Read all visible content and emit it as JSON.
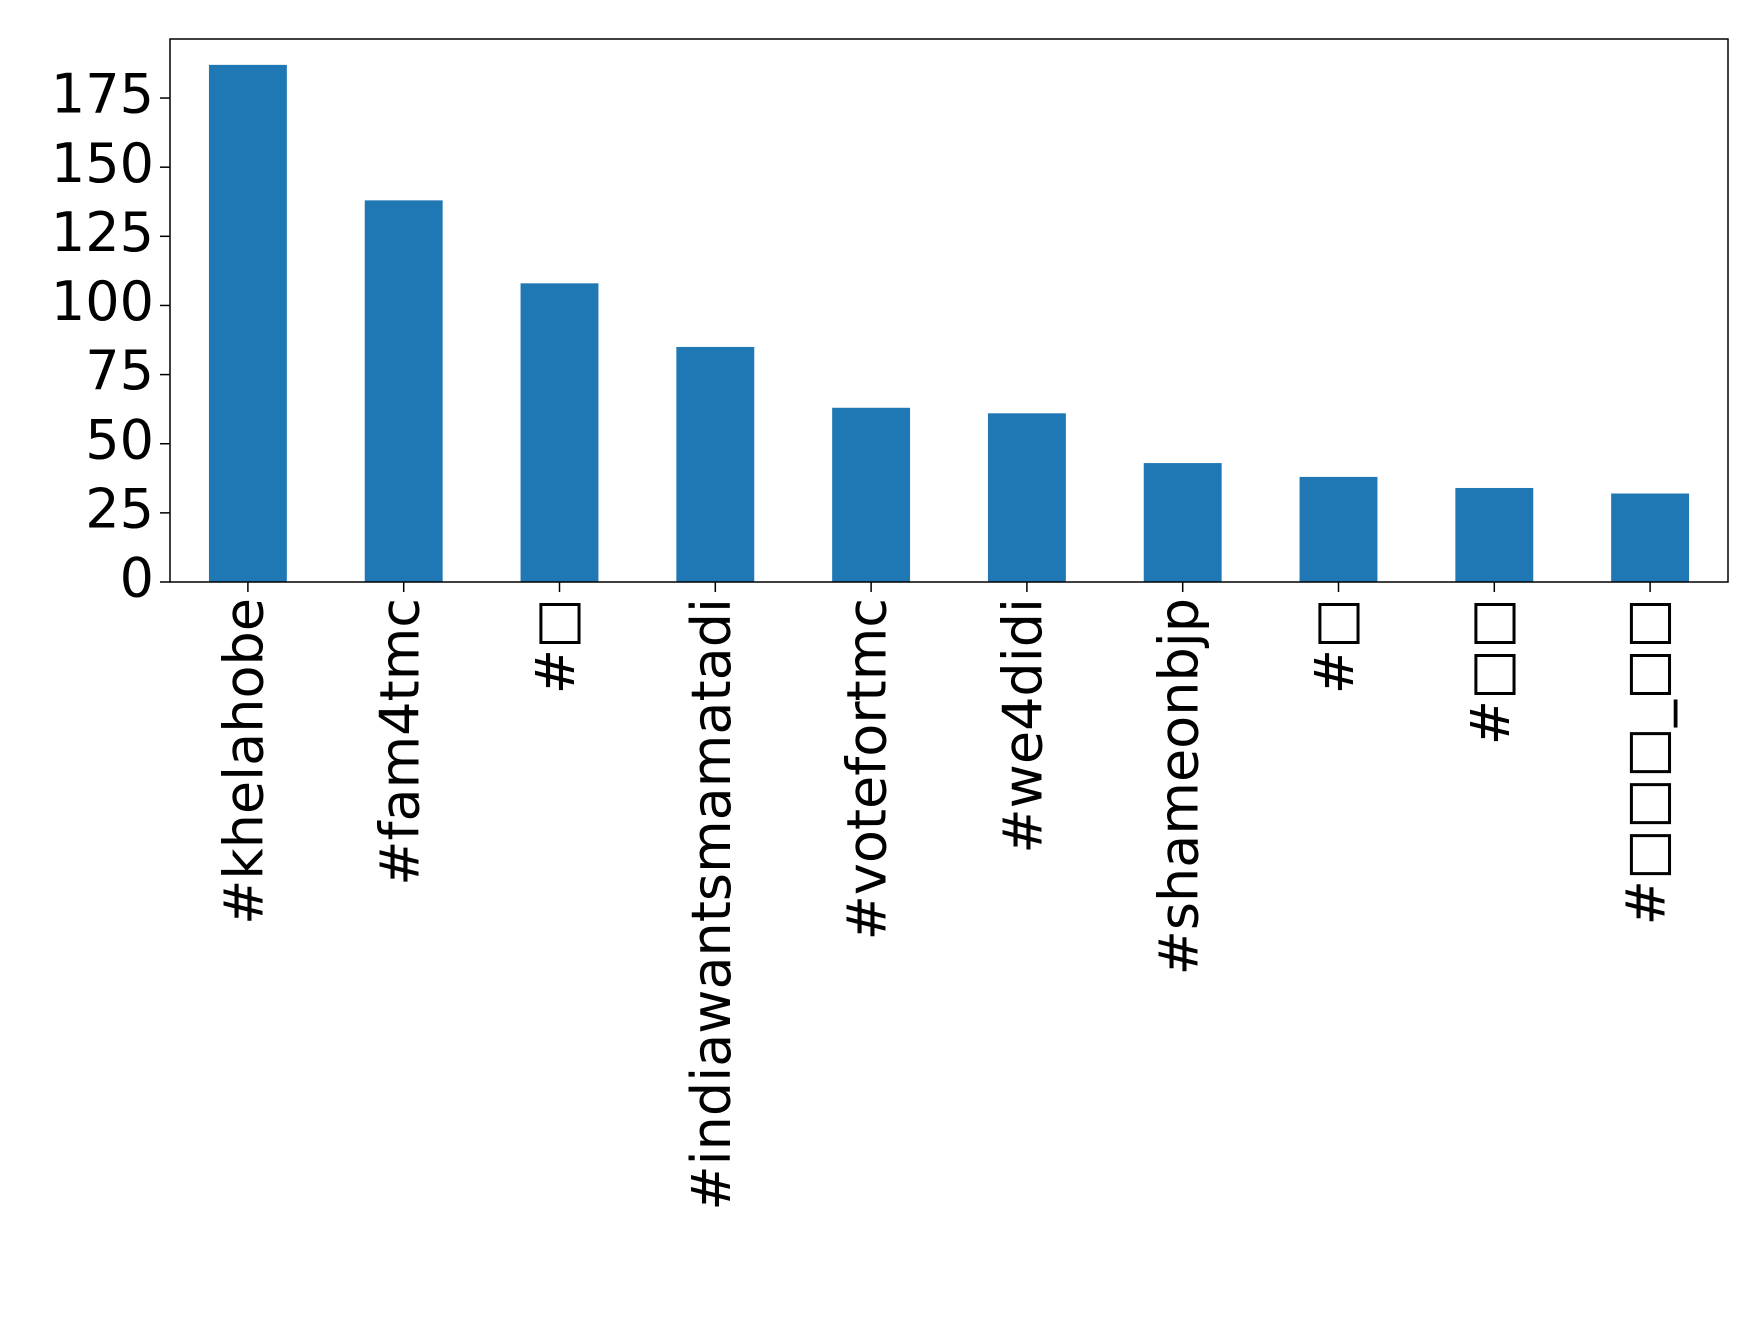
{
  "chart_data": {
    "type": "bar",
    "categories": [
      "#khelahobe",
      "#fam4tmc",
      "#□",
      "#indiawantsmamatadi",
      "#votefortmc",
      "#we4didi",
      "#shameonbjp",
      "#□",
      "#□□",
      "#□□□_□□"
    ],
    "values": [
      187,
      138,
      108,
      85,
      63,
      61,
      43,
      38,
      34,
      32
    ],
    "color": "#1f77b4",
    "ylim": [
      0,
      196.35
    ],
    "yticks": [
      0,
      25,
      50,
      75,
      100,
      125,
      150,
      175
    ],
    "grid": false
  }
}
